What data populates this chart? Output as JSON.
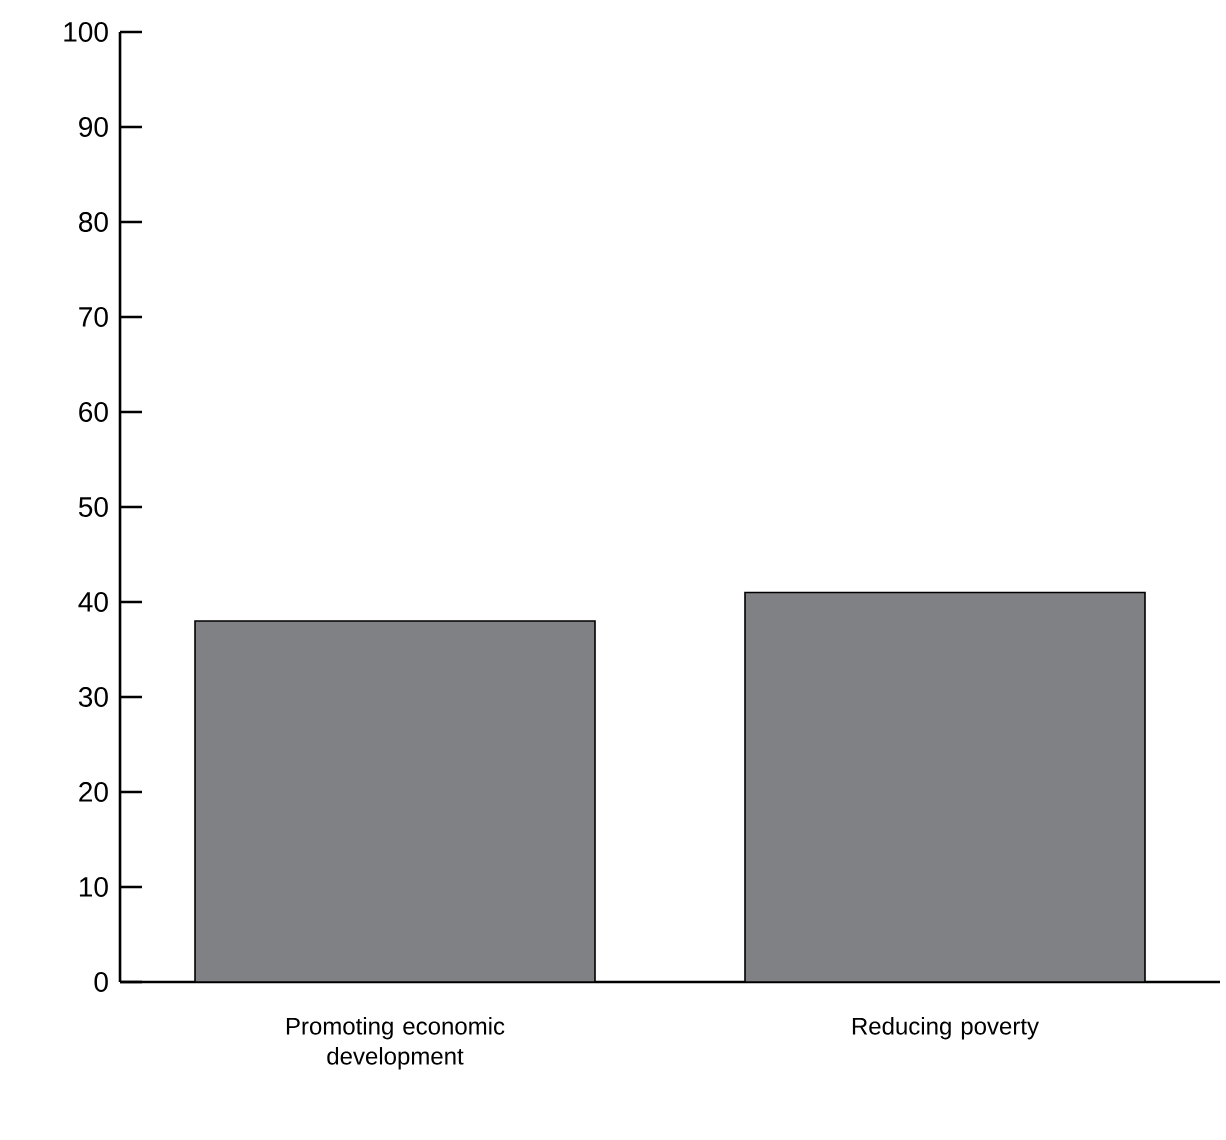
{
  "chart_data": {
    "type": "bar",
    "categories": [
      "Promoting economic development",
      "Reducing poverty"
    ],
    "values": [
      38,
      41
    ],
    "color": "#808184",
    "ylim": [
      0,
      100
    ],
    "yticks": [
      0,
      10,
      20,
      30,
      40,
      50,
      60,
      70,
      80,
      90,
      100
    ],
    "grid": false
  }
}
